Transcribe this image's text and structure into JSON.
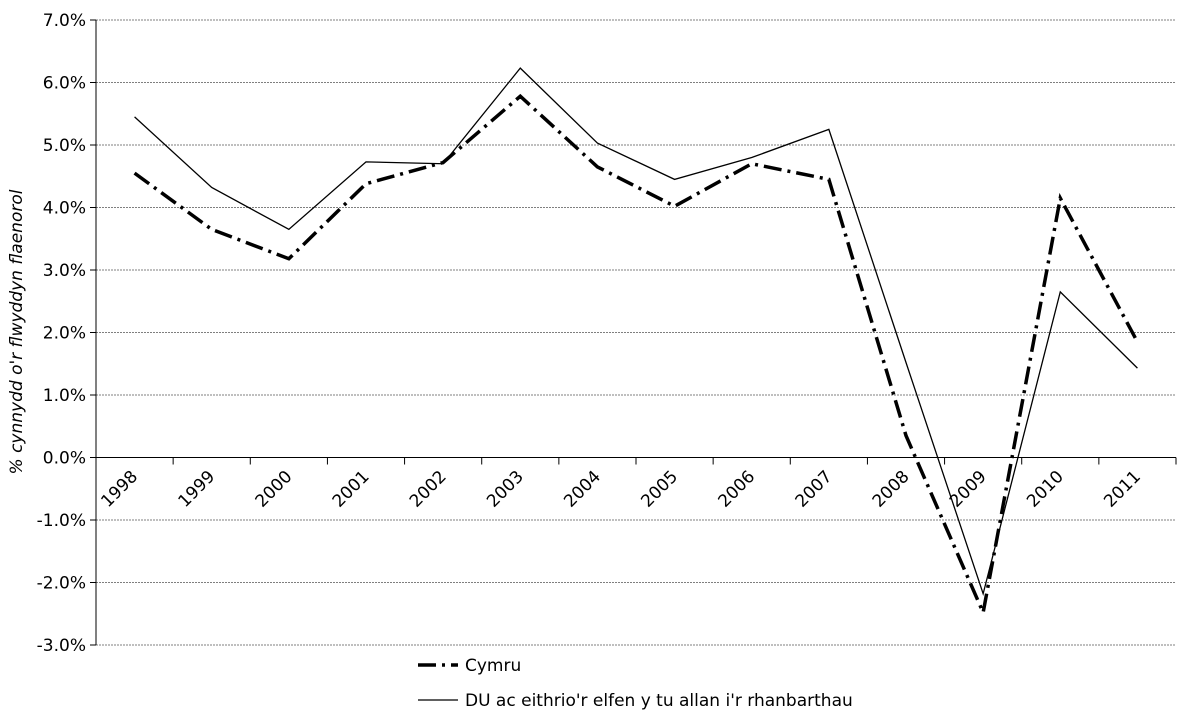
{
  "chart_data": {
    "type": "line",
    "ylabel": "% cynnydd o'r flwyddyn flaenorol",
    "xlabel": "",
    "categories": [
      "1998",
      "1999",
      "2000",
      "2001",
      "2002",
      "2003",
      "2004",
      "2005",
      "2006",
      "2007",
      "2008",
      "2009",
      "2010",
      "2011"
    ],
    "ylim": [
      -3.0,
      7.0
    ],
    "yticks": [
      "7.0%",
      "6.0%",
      "5.0%",
      "4.0%",
      "3.0%",
      "2.0%",
      "1.0%",
      "0.0%",
      "-1.0%",
      "-2.0%",
      "-3.0%"
    ],
    "grid": true,
    "legend_position": "bottom",
    "series": [
      {
        "name": "Cymru",
        "style": "dash-dot",
        "color": "#000000",
        "values": [
          4.55,
          3.65,
          3.18,
          4.38,
          4.72,
          5.78,
          4.65,
          4.02,
          4.7,
          4.45,
          0.35,
          -2.48,
          4.15,
          1.85
        ]
      },
      {
        "name": "DU ac eithrio'r elfen y tu allan i'r rhanbarthau",
        "style": "solid",
        "color": "#000000",
        "values": [
          5.45,
          4.32,
          3.65,
          4.73,
          4.7,
          6.23,
          5.03,
          4.45,
          4.8,
          5.25,
          1.52,
          -2.18,
          2.65,
          1.43
        ]
      }
    ]
  }
}
